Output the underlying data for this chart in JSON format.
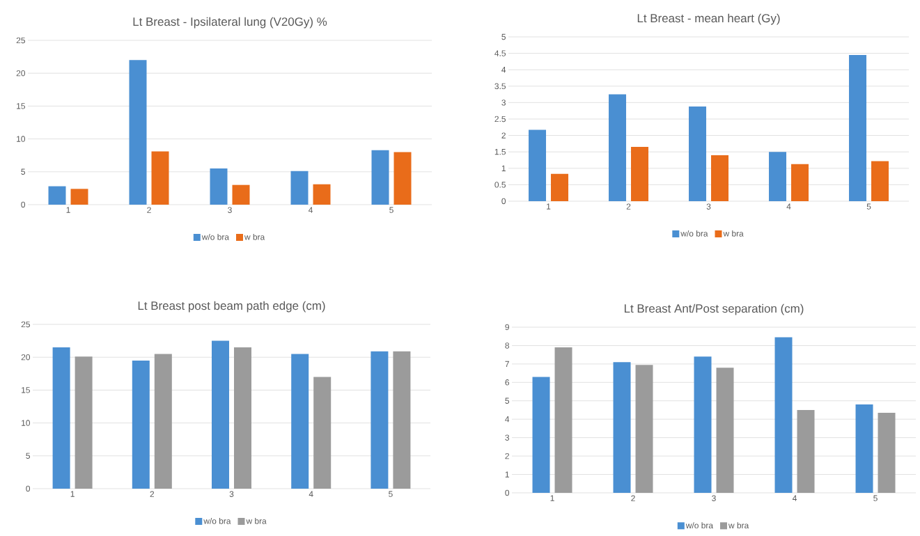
{
  "chart_data": [
    {
      "type": "bar",
      "title": "Lt Breast - Ipsilateral lung (V20Gy) %",
      "categories": [
        "1",
        "2",
        "3",
        "4",
        "5"
      ],
      "series": [
        {
          "name": "w/o bra",
          "color": "#4a8fd2",
          "values": [
            2.8,
            22,
            5.5,
            5.1,
            8.3
          ]
        },
        {
          "name": "w bra",
          "color": "#e96c1a",
          "values": [
            2.4,
            8.1,
            3.0,
            3.1,
            8.0
          ]
        }
      ],
      "ylim": [
        0,
        25
      ],
      "yticks": [
        0,
        5,
        10,
        15,
        20,
        25
      ],
      "grid": "y",
      "legend": "bottom"
    },
    {
      "type": "bar",
      "title": "Lt Breast - mean heart (Gy)",
      "categories": [
        "1",
        "2",
        "3",
        "4",
        "5"
      ],
      "series": [
        {
          "name": "w/o bra",
          "color": "#4a8fd2",
          "values": [
            2.17,
            3.25,
            2.88,
            1.5,
            4.45
          ]
        },
        {
          "name": "w bra",
          "color": "#e96c1a",
          "values": [
            0.83,
            1.65,
            1.4,
            1.13,
            1.22
          ]
        }
      ],
      "ylim": [
        0,
        5
      ],
      "yticks": [
        0,
        0.5,
        1,
        1.5,
        2,
        2.5,
        3,
        3.5,
        4,
        4.5,
        5
      ],
      "grid": "y",
      "legend": "bottom"
    },
    {
      "type": "bar",
      "title": "Lt Breast post beam path edge (cm)",
      "categories": [
        "1",
        "2",
        "3",
        "4",
        "5"
      ],
      "series": [
        {
          "name": "w/o bra",
          "color": "#4a8fd2",
          "values": [
            21.5,
            19.5,
            22.5,
            20.5,
            20.9
          ]
        },
        {
          "name": "w bra",
          "color": "#9b9b9b",
          "values": [
            20.1,
            20.5,
            21.5,
            17.0,
            20.9
          ]
        }
      ],
      "ylim": [
        0,
        25
      ],
      "yticks": [
        0,
        5,
        10,
        15,
        20,
        25
      ],
      "grid": "y",
      "legend": "bottom"
    },
    {
      "type": "bar",
      "title": "Lt Breast Ant/Post separation (cm)",
      "categories": [
        "1",
        "2",
        "3",
        "4",
        "5"
      ],
      "series": [
        {
          "name": "w/o bra",
          "color": "#4a8fd2",
          "values": [
            6.3,
            7.1,
            7.4,
            8.45,
            4.8
          ]
        },
        {
          "name": "w bra",
          "color": "#9b9b9b",
          "values": [
            7.9,
            6.95,
            6.8,
            4.5,
            4.35
          ]
        }
      ],
      "ylim": [
        0,
        9
      ],
      "yticks": [
        0,
        1,
        2,
        3,
        4,
        5,
        6,
        7,
        8,
        9
      ],
      "grid": "y",
      "legend": "bottom"
    }
  ]
}
